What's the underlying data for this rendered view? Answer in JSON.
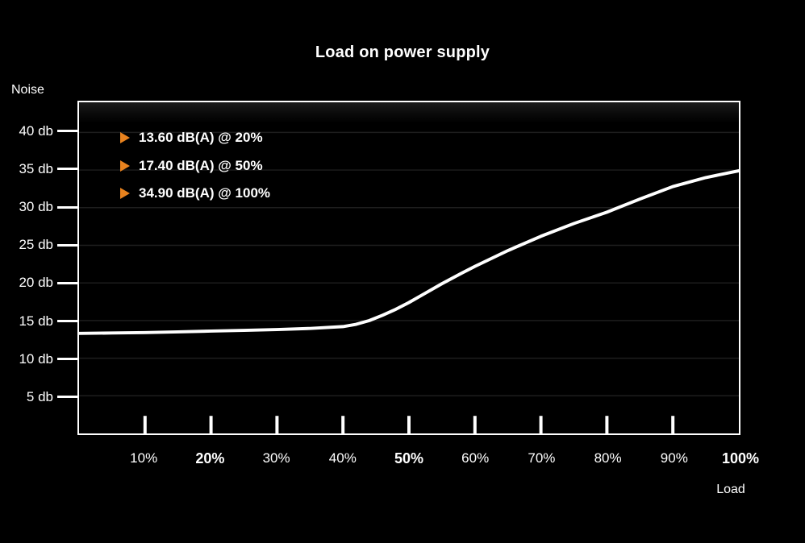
{
  "chart_data": {
    "type": "line",
    "title": "Load on power supply",
    "ylabel": "Noise",
    "xlabel": "Load",
    "xlim": [
      0,
      100
    ],
    "ylim": [
      0,
      44
    ],
    "grid": true,
    "legend_position": "top-left-inside",
    "colors": {
      "background": "#000000",
      "plot_top_glow": "#1c1c1c",
      "line": "#ffffff",
      "axis": "#ffffff",
      "grid": "#1e1e1e",
      "bullet_orange": "#e8821e",
      "text": "#ffffff"
    },
    "y_ticks": [
      {
        "value": 40,
        "label": "40 db"
      },
      {
        "value": 35,
        "label": "35 db"
      },
      {
        "value": 30,
        "label": "30 db"
      },
      {
        "value": 25,
        "label": "25 db"
      },
      {
        "value": 20,
        "label": "20 db"
      },
      {
        "value": 15,
        "label": "15 db"
      },
      {
        "value": 10,
        "label": "10 db"
      },
      {
        "value": 5,
        "label": "5 db"
      }
    ],
    "x_ticks": [
      {
        "value": 10,
        "label": "10%",
        "bold": false,
        "tick": true
      },
      {
        "value": 20,
        "label": "20%",
        "bold": true,
        "tick": true
      },
      {
        "value": 30,
        "label": "30%",
        "bold": false,
        "tick": true
      },
      {
        "value": 40,
        "label": "40%",
        "bold": false,
        "tick": true
      },
      {
        "value": 50,
        "label": "50%",
        "bold": true,
        "tick": true
      },
      {
        "value": 60,
        "label": "60%",
        "bold": false,
        "tick": true
      },
      {
        "value": 70,
        "label": "70%",
        "bold": false,
        "tick": true
      },
      {
        "value": 80,
        "label": "80%",
        "bold": false,
        "tick": true
      },
      {
        "value": 90,
        "label": "90%",
        "bold": false,
        "tick": true
      },
      {
        "value": 100,
        "label": "100%",
        "bold": true,
        "tick": false
      }
    ],
    "legend": [
      {
        "label": "13.60 dB(A) @ 20%"
      },
      {
        "label": "17.40 dB(A) @ 50%"
      },
      {
        "label": "34.90 dB(A) @ 100%"
      }
    ],
    "series": [
      {
        "name": "noise-curve",
        "points": [
          [
            0,
            13.3
          ],
          [
            5,
            13.35
          ],
          [
            10,
            13.4
          ],
          [
            15,
            13.5
          ],
          [
            20,
            13.6
          ],
          [
            25,
            13.7
          ],
          [
            30,
            13.8
          ],
          [
            35,
            13.95
          ],
          [
            40,
            14.2
          ],
          [
            42,
            14.5
          ],
          [
            44,
            15.0
          ],
          [
            46,
            15.7
          ],
          [
            48,
            16.5
          ],
          [
            50,
            17.4
          ],
          [
            52,
            18.4
          ],
          [
            55,
            19.9
          ],
          [
            58,
            21.3
          ],
          [
            60,
            22.2
          ],
          [
            65,
            24.3
          ],
          [
            70,
            26.2
          ],
          [
            75,
            27.9
          ],
          [
            80,
            29.4
          ],
          [
            85,
            31.15
          ],
          [
            90,
            32.8
          ],
          [
            95,
            34.0
          ],
          [
            100,
            34.9
          ]
        ]
      }
    ]
  }
}
